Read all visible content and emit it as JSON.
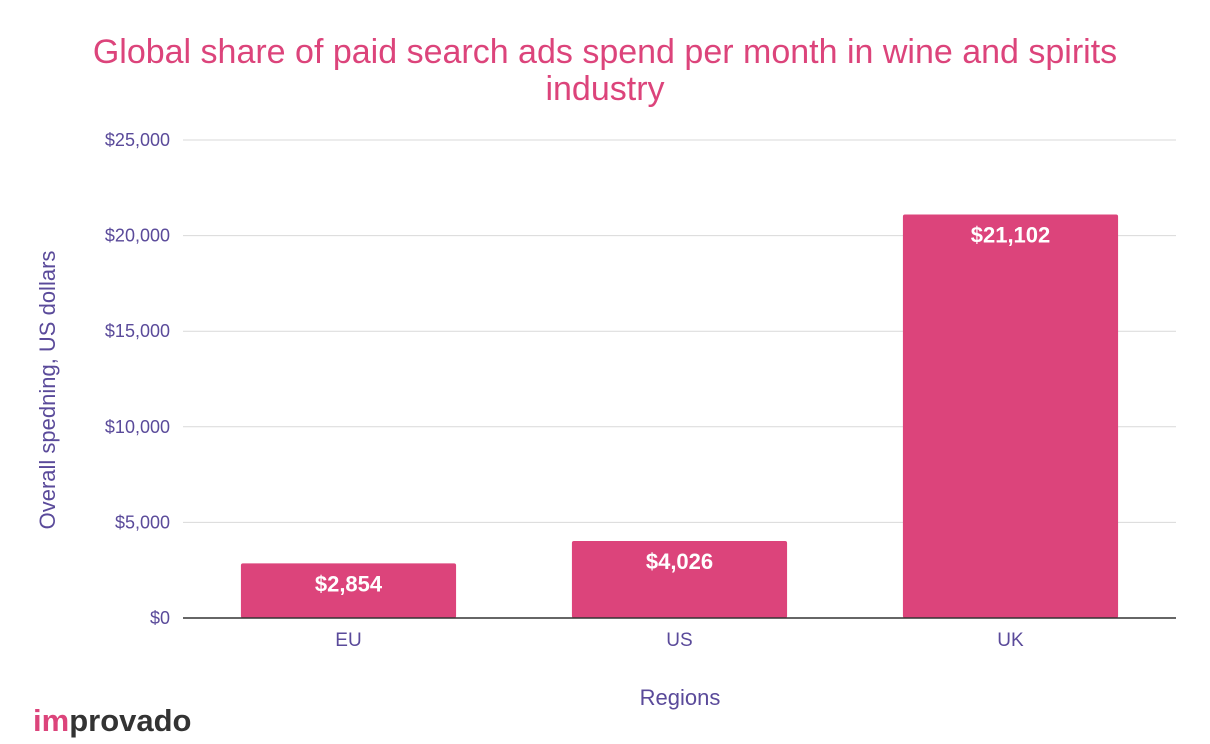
{
  "chart_data": {
    "type": "bar",
    "title": "Global share of paid search ads spend per month in wine and spirits industry",
    "xlabel": "Regions",
    "ylabel": "Overall spedning, US dollars",
    "categories": [
      "EU",
      "US",
      "UK"
    ],
    "values": [
      2854,
      4026,
      21102
    ],
    "value_labels": [
      "$2,854",
      "$4,026",
      "$21,102"
    ],
    "ylim": [
      0,
      25000
    ],
    "yticks": [
      0,
      5000,
      10000,
      15000,
      20000,
      25000
    ],
    "ytick_labels": [
      "$0",
      "$5,000",
      "$10,000",
      "$15,000",
      "$20,000",
      "$25,000"
    ],
    "grid": true,
    "legend": "none"
  },
  "logo": {
    "part1": "im",
    "part2": "provado"
  },
  "colors": {
    "bar": "#dc447b",
    "title": "#dc447b",
    "axis_text": "#5a4a9a",
    "grid": "#d9d9d9",
    "baseline": "#333333",
    "bar_label": "#ffffff",
    "logo_accent": "#dc447b",
    "logo_main": "#333333"
  }
}
